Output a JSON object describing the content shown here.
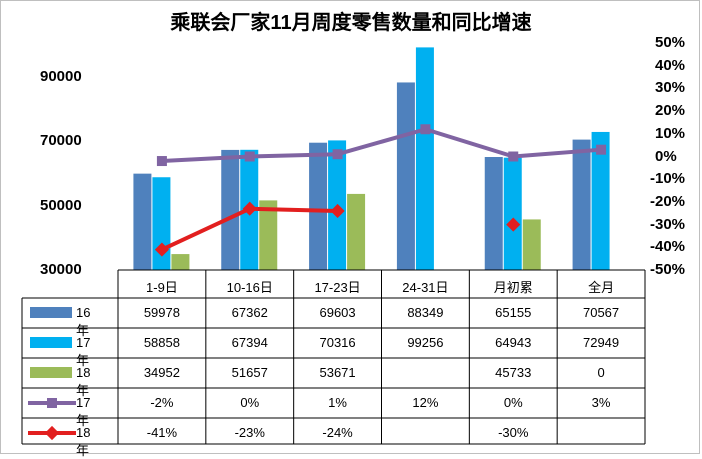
{
  "chart_data": {
    "type": "bar",
    "title": "乘联会厂家11月周度零售数量和同比增速",
    "categories": [
      "1-9日",
      "10-16日",
      "17-23日",
      "24-31日",
      "月初累",
      "全月"
    ],
    "y_left": {
      "range": [
        30000,
        100000
      ],
      "ticks": [
        "30000",
        "50000",
        "70000",
        "90000"
      ]
    },
    "y_right": {
      "range": [
        -50,
        50
      ],
      "ticks": [
        "50%",
        "40%",
        "30%",
        "20%",
        "10%",
        "0%",
        "-10%",
        "-20%",
        "-30%",
        "-40%",
        "-50%"
      ]
    },
    "series": [
      {
        "name": "16年",
        "type": "bar",
        "color": "#4f81bd",
        "values": [
          59978,
          67362,
          69603,
          88349,
          65155,
          70567
        ],
        "labels": [
          "59978",
          "67362",
          "69603",
          "88349",
          "65155",
          "70567"
        ]
      },
      {
        "name": "17年",
        "type": "bar",
        "color": "#00b0f0",
        "values": [
          58858,
          67394,
          70316,
          99256,
          64943,
          72949
        ],
        "labels": [
          "58858",
          "67394",
          "70316",
          "99256",
          "64943",
          "72949"
        ]
      },
      {
        "name": "18年",
        "type": "bar",
        "color": "#9bbb59",
        "values": [
          34952,
          51657,
          53671,
          null,
          45733,
          0
        ],
        "labels": [
          "34952",
          "51657",
          "53671",
          "",
          "45733",
          "0"
        ]
      },
      {
        "name": "17年",
        "type": "line",
        "axis": "right",
        "color": "#8064a2",
        "values": [
          -2,
          0,
          1,
          12,
          0,
          3
        ],
        "labels": [
          "-2%",
          "0%",
          "1%",
          "12%",
          "0%",
          "3%"
        ]
      },
      {
        "name": "18年",
        "type": "line",
        "axis": "right",
        "color": "#e21f1f",
        "values": [
          -41,
          -23,
          -24,
          null,
          -30,
          null
        ],
        "labels": [
          "-41%",
          "-23%",
          "-24%",
          "",
          "-30%",
          ""
        ]
      }
    ]
  }
}
